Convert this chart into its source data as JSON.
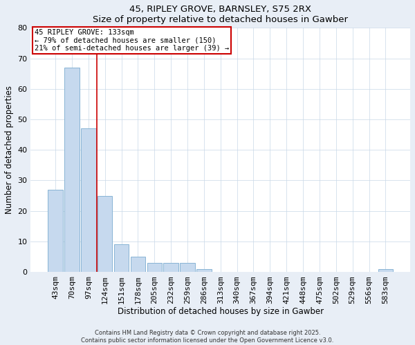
{
  "title": "45, RIPLEY GROVE, BARNSLEY, S75 2RX",
  "subtitle": "Size of property relative to detached houses in Gawber",
  "xlabel": "Distribution of detached houses by size in Gawber",
  "ylabel": "Number of detached properties",
  "bar_labels": [
    "43sqm",
    "70sqm",
    "97sqm",
    "124sqm",
    "151sqm",
    "178sqm",
    "205sqm",
    "232sqm",
    "259sqm",
    "286sqm",
    "313sqm",
    "340sqm",
    "367sqm",
    "394sqm",
    "421sqm",
    "448sqm",
    "475sqm",
    "502sqm",
    "529sqm",
    "556sqm",
    "583sqm"
  ],
  "bar_values": [
    27,
    67,
    47,
    25,
    9,
    5,
    3,
    3,
    3,
    1,
    0,
    0,
    0,
    0,
    0,
    0,
    0,
    0,
    0,
    0,
    1
  ],
  "bar_color": "#c6d9ee",
  "bar_edgecolor": "#88b4d4",
  "property_line_label": "45 RIPLEY GROVE: 133sqm",
  "annotation_line1": "← 79% of detached houses are smaller (150)",
  "annotation_line2": "21% of semi-detached houses are larger (39) →",
  "annotation_box_color": "#cc0000",
  "ylim": [
    0,
    80
  ],
  "yticks": [
    0,
    10,
    20,
    30,
    40,
    50,
    60,
    70,
    80
  ],
  "footer1": "Contains HM Land Registry data © Crown copyright and database right 2025.",
  "footer2": "Contains public sector information licensed under the Open Government Licence v3.0.",
  "bg_color": "#e8eef6",
  "plot_bg_color": "#ffffff",
  "grid_color": "#c8d8e8"
}
